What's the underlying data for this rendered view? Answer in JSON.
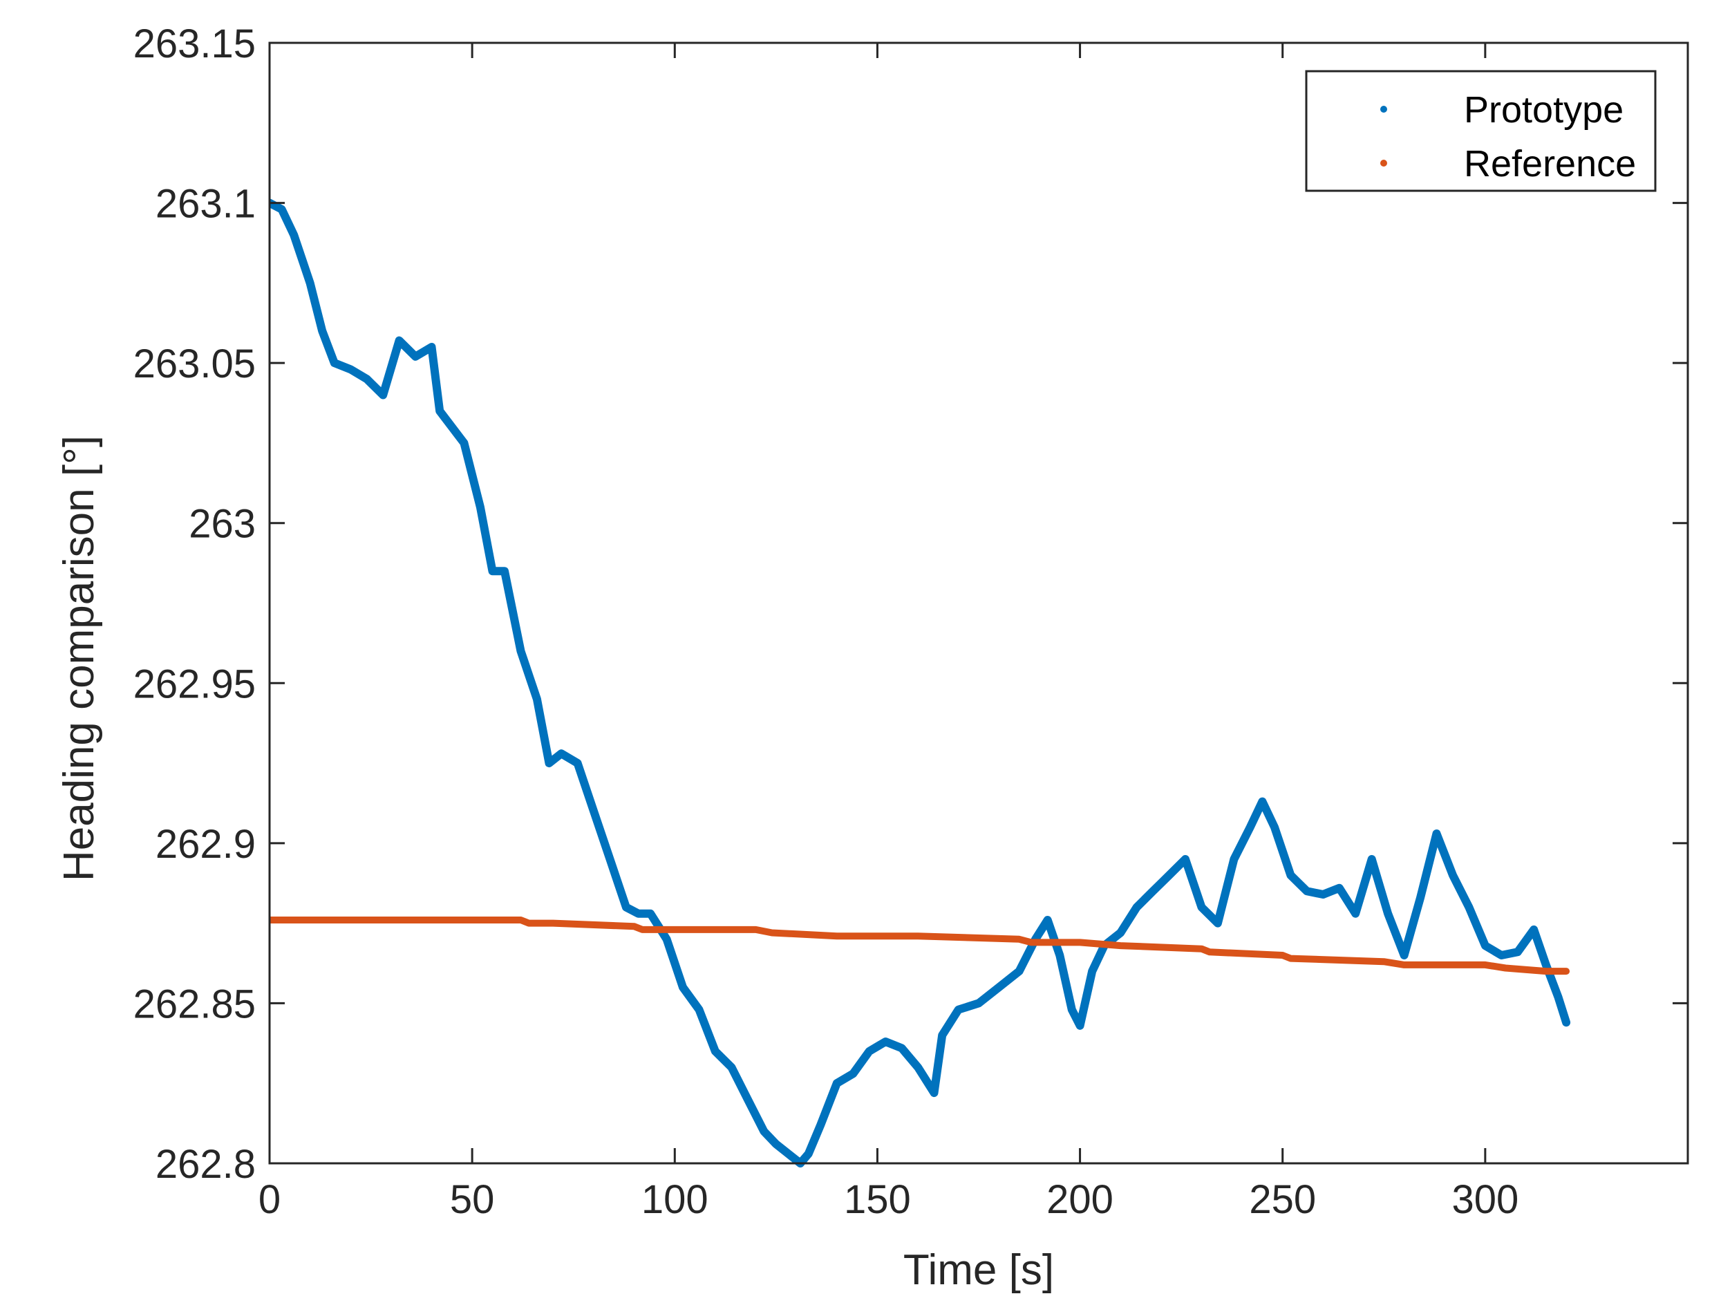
{
  "chart_data": {
    "type": "line",
    "title": "",
    "xlabel": "Time [s]",
    "ylabel": "Heading comparison [°]",
    "xlim": [
      0,
      350
    ],
    "ylim": [
      262.8,
      263.15
    ],
    "xticks": [
      0,
      50,
      100,
      150,
      200,
      250,
      300
    ],
    "xtick_labels": [
      "0",
      "50",
      "100",
      "150",
      "200",
      "250",
      "300"
    ],
    "yticks": [
      262.8,
      262.85,
      262.9,
      262.95,
      263,
      263.05,
      263.1,
      263.15
    ],
    "ytick_labels": [
      "262.8",
      "262.85",
      "262.9",
      "262.95",
      "263",
      "263.05",
      "263.1",
      "263.15"
    ],
    "grid": false,
    "legend_position": "top-right",
    "series": [
      {
        "name": "Prototype",
        "color": "#0072BD",
        "x": [
          0,
          3,
          6,
          10,
          13,
          16,
          20,
          24,
          28,
          32,
          36,
          40,
          42,
          45,
          48,
          52,
          55,
          58,
          62,
          66,
          69,
          72,
          76,
          80,
          84,
          88,
          91,
          94,
          98,
          102,
          106,
          110,
          114,
          118,
          122,
          125,
          128,
          131,
          133,
          136,
          140,
          144,
          148,
          152,
          156,
          160,
          164,
          166,
          170,
          175,
          180,
          185,
          189,
          192,
          195,
          198,
          200,
          203,
          206,
          210,
          214,
          218,
          222,
          226,
          230,
          234,
          238,
          242,
          245,
          248,
          252,
          256,
          260,
          264,
          268,
          272,
          276,
          280,
          284,
          288,
          292,
          296,
          300,
          304,
          308,
          312,
          315,
          318,
          320
        ],
        "y": [
          263.1,
          263.098,
          263.09,
          263.075,
          263.06,
          263.05,
          263.048,
          263.045,
          263.04,
          263.057,
          263.052,
          263.055,
          263.035,
          263.03,
          263.025,
          263.005,
          262.985,
          262.985,
          262.96,
          262.945,
          262.925,
          262.928,
          262.925,
          262.91,
          262.895,
          262.88,
          262.878,
          262.878,
          262.87,
          262.855,
          262.848,
          262.835,
          262.83,
          262.82,
          262.81,
          262.806,
          262.803,
          262.8,
          262.803,
          262.812,
          262.825,
          262.828,
          262.835,
          262.838,
          262.836,
          262.83,
          262.822,
          262.84,
          262.848,
          262.85,
          262.855,
          262.86,
          262.87,
          262.876,
          262.865,
          262.848,
          262.843,
          262.86,
          262.868,
          262.872,
          262.88,
          262.885,
          262.89,
          262.895,
          262.88,
          262.875,
          262.895,
          262.905,
          262.913,
          262.905,
          262.89,
          262.885,
          262.884,
          262.886,
          262.878,
          262.895,
          262.878,
          262.865,
          262.883,
          262.903,
          262.89,
          262.88,
          262.868,
          262.865,
          262.866,
          262.873,
          262.862,
          262.852,
          262.844
        ]
      },
      {
        "name": "Reference",
        "color": "#D95319",
        "x": [
          0,
          20,
          40,
          62,
          64,
          70,
          90,
          92,
          120,
          124,
          140,
          160,
          185,
          188,
          200,
          210,
          230,
          232,
          250,
          252,
          275,
          280,
          300,
          305,
          315,
          320
        ],
        "y": [
          262.876,
          262.876,
          262.876,
          262.876,
          262.875,
          262.875,
          262.874,
          262.873,
          262.873,
          262.872,
          262.871,
          262.871,
          262.87,
          262.869,
          262.869,
          262.868,
          262.867,
          262.866,
          262.865,
          262.864,
          262.863,
          262.862,
          262.862,
          262.861,
          262.86,
          262.86
        ]
      }
    ]
  }
}
